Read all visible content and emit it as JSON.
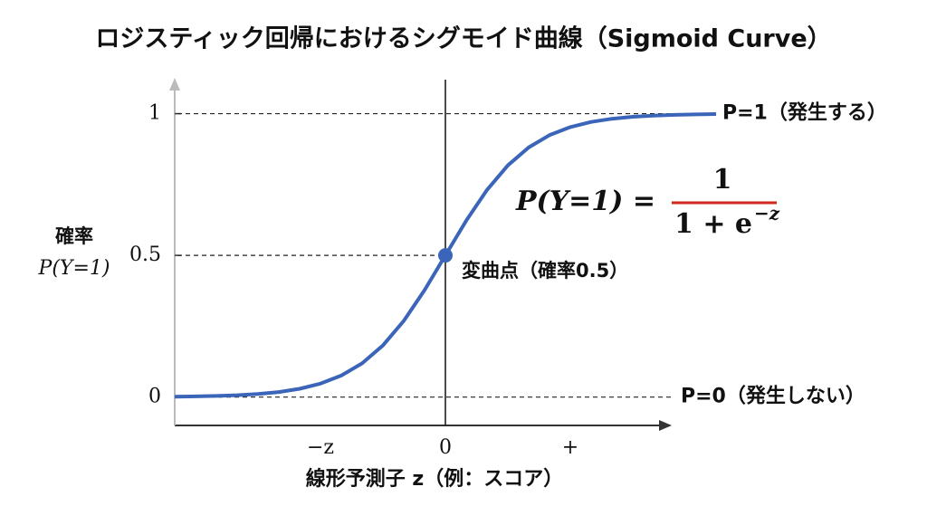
{
  "chart_data": {
    "type": "line",
    "title": "ロジスティック回帰におけるシグモイド曲線（Sigmoid Curve）",
    "ylabel": [
      "確率",
      "P(Y=1)"
    ],
    "xlabel": "線形予測子 z（例：スコア）",
    "x": [
      -6.5,
      -6,
      -5.5,
      -5,
      -4.5,
      -4,
      -3.5,
      -3,
      -2.5,
      -2,
      -1.5,
      -1,
      -0.5,
      0,
      0.5,
      1,
      1.5,
      2,
      2.5,
      3,
      3.5,
      4,
      4.5,
      5,
      5.5,
      6,
      6.5
    ],
    "series": [
      {
        "color": "#3b65b8",
        "values": [
          0.0015,
          0.0025,
          0.0041,
          0.0067,
          0.011,
          0.018,
          0.0293,
          0.0474,
          0.0759,
          0.1192,
          0.1824,
          0.2689,
          0.3775,
          0.5,
          0.6225,
          0.7311,
          0.8176,
          0.8808,
          0.9241,
          0.9526,
          0.9707,
          0.982,
          0.989,
          0.9933,
          0.9959,
          0.9975,
          0.9985
        ]
      }
    ],
    "xlim": [
      -6.5,
      6.5
    ],
    "ylim": [
      -0.1,
      1.12
    ],
    "xticks": [
      {
        "value": -3,
        "label": "−z"
      },
      0,
      {
        "value": 3,
        "label": "+"
      }
    ],
    "yticks": [
      0,
      0.5,
      1
    ],
    "hlines": [
      {
        "value": 1,
        "label": "P=1（発生する）"
      },
      {
        "value": 0,
        "label": "P=0（発生しない）"
      }
    ],
    "point": {
      "x": 0,
      "y": 0.5,
      "label": "変曲点（確率0.5）",
      "color": "#3b65b8"
    },
    "formula": {
      "lhs": "P(Y=1) =",
      "numerator": "1",
      "denominator": "1 + e",
      "exponent": "−z",
      "color": "#d0281e"
    }
  }
}
